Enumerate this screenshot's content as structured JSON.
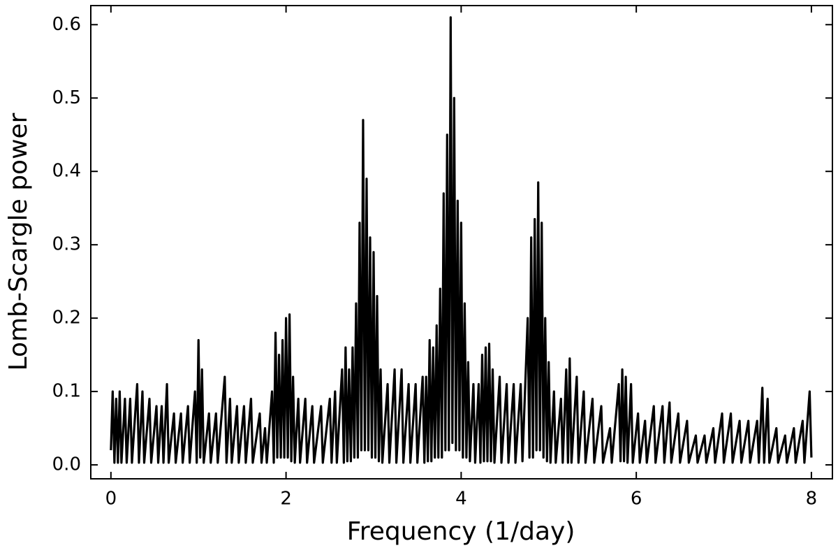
{
  "chart_data": {
    "type": "line",
    "xlabel": "Frequency (1/day)",
    "ylabel": "Lomb-Scargle power",
    "xlim": [
      -0.23,
      8.24
    ],
    "ylim": [
      -0.019,
      0.626
    ],
    "xticks": [
      0,
      2,
      4,
      6,
      8
    ],
    "yticks": [
      {
        "value": 0,
        "label": "0.0"
      },
      0.1,
      0.2,
      0.3,
      0.4,
      0.5,
      0.6
    ],
    "grid": false,
    "series": [
      {
        "color": "#000000",
        "x": [
          0.0,
          0.02,
          0.04,
          0.06,
          0.08,
          0.1,
          0.12,
          0.16,
          0.18,
          0.22,
          0.24,
          0.3,
          0.32,
          0.36,
          0.38,
          0.44,
          0.46,
          0.52,
          0.54,
          0.58,
          0.6,
          0.64,
          0.66,
          0.72,
          0.74,
          0.8,
          0.82,
          0.88,
          0.9,
          0.96,
          0.98,
          1.0,
          1.02,
          1.04,
          1.06,
          1.12,
          1.14,
          1.2,
          1.22,
          1.3,
          1.32,
          1.36,
          1.38,
          1.44,
          1.46,
          1.52,
          1.54,
          1.6,
          1.62,
          1.7,
          1.72,
          1.76,
          1.78,
          1.84,
          1.86,
          1.88,
          1.9,
          1.92,
          1.94,
          1.96,
          1.98,
          2.0,
          2.02,
          2.04,
          2.06,
          2.08,
          2.1,
          2.14,
          2.16,
          2.22,
          2.24,
          2.3,
          2.32,
          2.4,
          2.42,
          2.5,
          2.52,
          2.56,
          2.58,
          2.64,
          2.66,
          2.68,
          2.7,
          2.72,
          2.74,
          2.76,
          2.78,
          2.8,
          2.82,
          2.84,
          2.86,
          2.88,
          2.9,
          2.92,
          2.94,
          2.96,
          2.98,
          3.0,
          3.02,
          3.04,
          3.06,
          3.08,
          3.1,
          3.16,
          3.18,
          3.24,
          3.26,
          3.32,
          3.34,
          3.4,
          3.42,
          3.48,
          3.5,
          3.56,
          3.58,
          3.6,
          3.62,
          3.64,
          3.66,
          3.68,
          3.7,
          3.72,
          3.74,
          3.76,
          3.78,
          3.8,
          3.82,
          3.84,
          3.86,
          3.88,
          3.9,
          3.92,
          3.94,
          3.96,
          3.98,
          4.0,
          4.02,
          4.04,
          4.06,
          4.08,
          4.1,
          4.14,
          4.16,
          4.2,
          4.22,
          4.24,
          4.26,
          4.28,
          4.3,
          4.32,
          4.34,
          4.36,
          4.38,
          4.44,
          4.46,
          4.52,
          4.54,
          4.6,
          4.62,
          4.68,
          4.7,
          4.76,
          4.78,
          4.8,
          4.82,
          4.84,
          4.86,
          4.88,
          4.9,
          4.92,
          4.94,
          4.96,
          4.98,
          5.0,
          5.02,
          5.06,
          5.08,
          5.14,
          5.16,
          5.2,
          5.22,
          5.24,
          5.26,
          5.32,
          5.34,
          5.4,
          5.42,
          5.5,
          5.52,
          5.6,
          5.62,
          5.7,
          5.72,
          5.8,
          5.82,
          5.84,
          5.86,
          5.88,
          5.9,
          5.94,
          5.96,
          6.02,
          6.04,
          6.1,
          6.12,
          6.2,
          6.22,
          6.3,
          6.32,
          6.38,
          6.4,
          6.48,
          6.5,
          6.58,
          6.6,
          6.68,
          6.7,
          6.78,
          6.8,
          6.88,
          6.9,
          6.98,
          7.0,
          7.08,
          7.1,
          7.18,
          7.2,
          7.28,
          7.3,
          7.38,
          7.4,
          7.44,
          7.46,
          7.5,
          7.52,
          7.6,
          7.62,
          7.7,
          7.72,
          7.8,
          7.82,
          7.9,
          7.92,
          7.98,
          8.0
        ],
        "values": [
          0.02,
          0.1,
          0.003,
          0.09,
          0.003,
          0.1,
          0.003,
          0.09,
          0.003,
          0.09,
          0.003,
          0.11,
          0.003,
          0.1,
          0.003,
          0.09,
          0.003,
          0.08,
          0.003,
          0.08,
          0.003,
          0.11,
          0.003,
          0.07,
          0.003,
          0.07,
          0.003,
          0.08,
          0.003,
          0.1,
          0.003,
          0.17,
          0.01,
          0.13,
          0.003,
          0.07,
          0.003,
          0.07,
          0.003,
          0.12,
          0.003,
          0.09,
          0.003,
          0.08,
          0.003,
          0.08,
          0.003,
          0.09,
          0.003,
          0.07,
          0.003,
          0.05,
          0.003,
          0.1,
          0.003,
          0.18,
          0.01,
          0.15,
          0.01,
          0.17,
          0.01,
          0.2,
          0.01,
          0.205,
          0.005,
          0.12,
          0.003,
          0.09,
          0.003,
          0.09,
          0.003,
          0.08,
          0.003,
          0.08,
          0.003,
          0.09,
          0.003,
          0.1,
          0.003,
          0.13,
          0.003,
          0.16,
          0.005,
          0.13,
          0.005,
          0.16,
          0.01,
          0.22,
          0.01,
          0.33,
          0.02,
          0.47,
          0.02,
          0.39,
          0.02,
          0.31,
          0.01,
          0.29,
          0.01,
          0.23,
          0.005,
          0.13,
          0.003,
          0.11,
          0.003,
          0.13,
          0.003,
          0.13,
          0.003,
          0.11,
          0.003,
          0.11,
          0.003,
          0.12,
          0.003,
          0.12,
          0.005,
          0.17,
          0.005,
          0.16,
          0.01,
          0.19,
          0.01,
          0.24,
          0.01,
          0.37,
          0.02,
          0.45,
          0.02,
          0.61,
          0.03,
          0.5,
          0.02,
          0.36,
          0.02,
          0.33,
          0.01,
          0.22,
          0.01,
          0.14,
          0.005,
          0.11,
          0.003,
          0.11,
          0.003,
          0.15,
          0.005,
          0.16,
          0.005,
          0.165,
          0.005,
          0.13,
          0.003,
          0.12,
          0.003,
          0.11,
          0.003,
          0.11,
          0.003,
          0.11,
          0.005,
          0.2,
          0.01,
          0.31,
          0.01,
          0.335,
          0.02,
          0.385,
          0.02,
          0.33,
          0.01,
          0.2,
          0.005,
          0.14,
          0.003,
          0.1,
          0.003,
          0.09,
          0.003,
          0.13,
          0.003,
          0.145,
          0.003,
          0.12,
          0.003,
          0.1,
          0.003,
          0.09,
          0.003,
          0.08,
          0.003,
          0.05,
          0.003,
          0.11,
          0.005,
          0.13,
          0.005,
          0.12,
          0.003,
          0.11,
          0.003,
          0.07,
          0.003,
          0.06,
          0.003,
          0.08,
          0.003,
          0.08,
          0.003,
          0.085,
          0.003,
          0.07,
          0.003,
          0.06,
          0.003,
          0.04,
          0.003,
          0.04,
          0.003,
          0.05,
          0.003,
          0.07,
          0.003,
          0.07,
          0.003,
          0.06,
          0.003,
          0.06,
          0.003,
          0.06,
          0.003,
          0.105,
          0.003,
          0.09,
          0.003,
          0.05,
          0.003,
          0.04,
          0.003,
          0.05,
          0.003,
          0.06,
          0.003,
          0.1,
          0.01
        ]
      }
    ]
  }
}
